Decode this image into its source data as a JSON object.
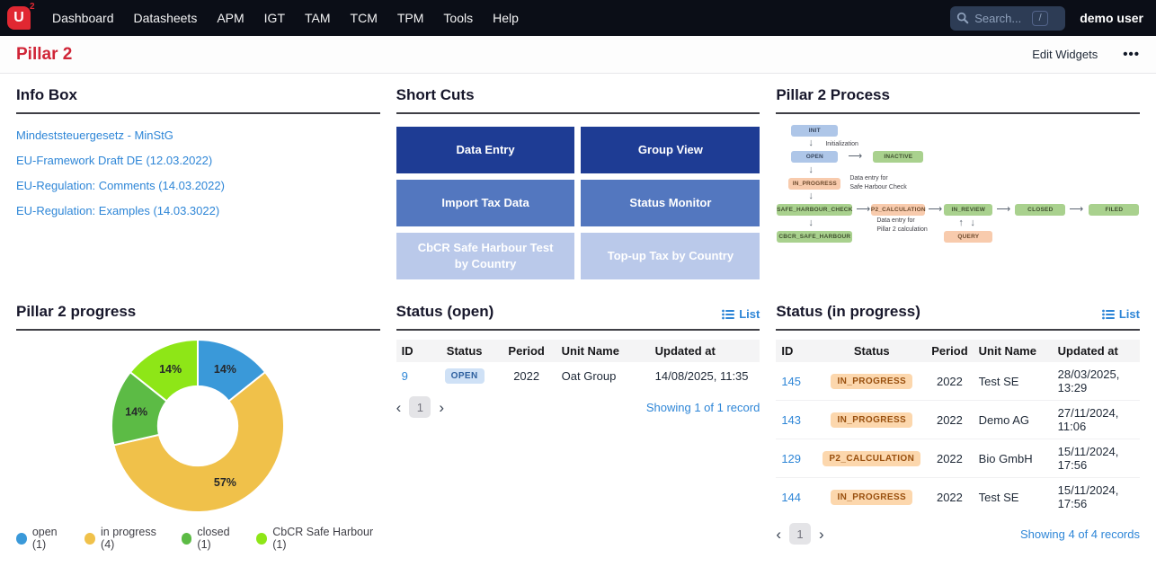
{
  "navbar": {
    "logo": {
      "letter": "U",
      "sup": "2"
    },
    "items": [
      {
        "label": "Dashboard"
      },
      {
        "label": "Datasheets"
      },
      {
        "label": "APM"
      },
      {
        "label": "IGT"
      },
      {
        "label": "TAM"
      },
      {
        "label": "TCM"
      },
      {
        "label": "TPM"
      },
      {
        "label": "Tools"
      },
      {
        "label": "Help"
      }
    ],
    "search": {
      "placeholder": "Search...",
      "shortcut": "/"
    },
    "user": "demo user"
  },
  "page_header": {
    "title": "Pillar 2",
    "edit_widgets": "Edit Widgets",
    "more_icon": "•••"
  },
  "widgets": {
    "info_box": {
      "title": "Info Box",
      "links": [
        {
          "label": "Mindeststeuergesetz - MinStG"
        },
        {
          "label": "EU-Framework Draft DE (12.03.2022)"
        },
        {
          "label": "EU-Regulation: Comments (14.03.2022)"
        },
        {
          "label": "EU-Regulation: Examples (14.03.3022)"
        }
      ]
    },
    "short_cuts": {
      "title": "Short Cuts",
      "buttons": [
        {
          "label": "Data Entry"
        },
        {
          "label": "Group View"
        },
        {
          "label": "Import Tax Data"
        },
        {
          "label": "Status Monitor"
        },
        {
          "label": "CbCR Safe Harbour Test by Country"
        },
        {
          "label": "Top-up Tax by Country"
        }
      ],
      "colors": {
        "dark": "#1e3c94",
        "mid": "#5377bf",
        "light": "#bac9ea"
      }
    },
    "process": {
      "title": "Pillar 2 Process",
      "nodes": {
        "init": "INIT",
        "open": "OPEN",
        "inactive": "INACTIVE",
        "in_progress": "IN_PROGRESS",
        "safe_harbour_check": "SAFE_HARBOUR_CHECK",
        "p2_calculation": "P2_CALCULATION",
        "in_review": "IN_REVIEW",
        "closed": "CLOSED",
        "filed": "FILED",
        "cbcr_safe_harbour": "CBCR_SAFE_HARBOUR",
        "query": "QUERY"
      },
      "annotations": {
        "initialization": "Initialization",
        "data_entry_shc_1": "Data entry for",
        "data_entry_shc_2": "Safe Harbour Check",
        "data_entry_p2_1": "Data entry for",
        "data_entry_p2_2": "Pillar 2 calculation"
      },
      "colors": {
        "blue": "#aec6e8",
        "green": "#a9d18e",
        "orange": "#f8cbad"
      }
    },
    "progress": {
      "title": "Pillar 2 progress"
    },
    "status_open": {
      "title": "Status (open)",
      "list_label": "List",
      "columns": [
        "ID",
        "Status",
        "Period",
        "Unit Name",
        "Updated at"
      ],
      "rows": [
        {
          "id": "9",
          "status": "OPEN",
          "period": "2022",
          "unit_name": "Oat Group",
          "updated_at": "14/08/2025, 11:35"
        }
      ],
      "page": "1",
      "prev": "‹",
      "next": "›",
      "summary": "Showing 1 of 1 record"
    },
    "status_in_progress": {
      "title": "Status (in progress)",
      "list_label": "List",
      "columns": [
        "ID",
        "Status",
        "Period",
        "Unit Name",
        "Updated at"
      ],
      "rows": [
        {
          "id": "145",
          "status": "IN_PROGRESS",
          "period": "2022",
          "unit_name": "Test SE",
          "updated_at": "28/03/2025, 13:29"
        },
        {
          "id": "143",
          "status": "IN_PROGRESS",
          "period": "2022",
          "unit_name": "Demo AG",
          "updated_at": "27/11/2024, 11:06"
        },
        {
          "id": "129",
          "status": "P2_CALCULATION",
          "period": "2022",
          "unit_name": "Bio GmbH",
          "updated_at": "15/11/2024, 17:56"
        },
        {
          "id": "144",
          "status": "IN_PROGRESS",
          "period": "2022",
          "unit_name": "Test SE",
          "updated_at": "15/11/2024, 17:56"
        }
      ],
      "page": "1",
      "prev": "‹",
      "next": "›",
      "summary": "Showing 4 of 4 records"
    }
  },
  "chart_data": {
    "type": "pie",
    "subtype": "donut",
    "title": "Pillar 2 progress",
    "labels": [
      "open (1)",
      "in progress (4)",
      "closed (1)",
      "CbCR Safe Harbour (1)"
    ],
    "values": [
      1,
      4,
      1,
      1
    ],
    "percent_labels": [
      "14%",
      "57%",
      "14%",
      "14%"
    ],
    "colors": [
      "#3a99d9",
      "#f0c14a",
      "#5cbb45",
      "#8ee617"
    ],
    "inner_radius_ratio": 0.46,
    "start_angle_deg": 0,
    "direction": "clockwise",
    "legend_position": "bottom"
  }
}
